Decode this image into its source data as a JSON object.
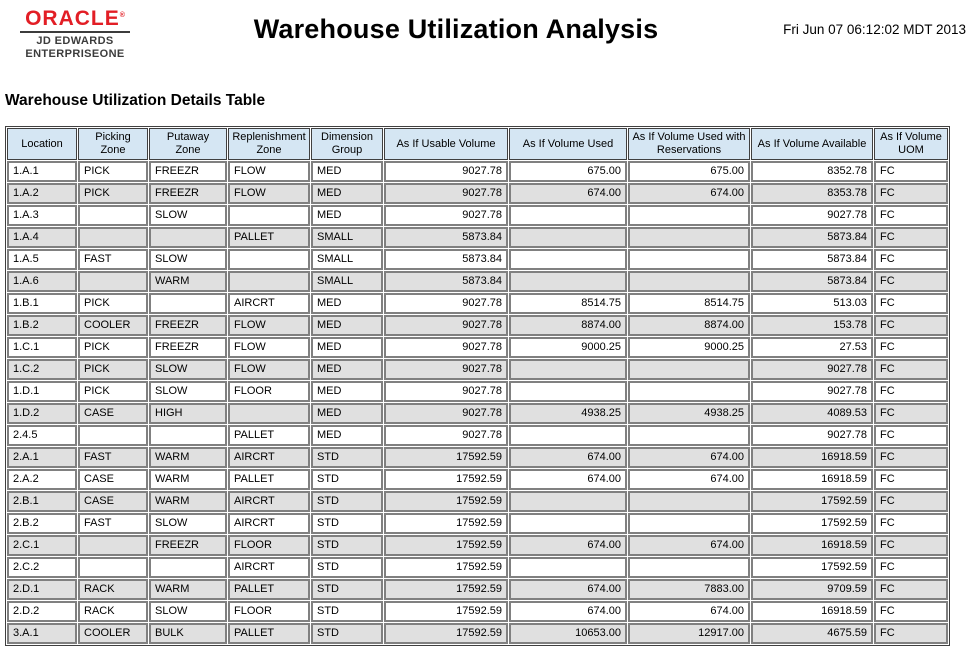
{
  "header": {
    "logo": {
      "brand": "ORACLE",
      "registered_mark": "®",
      "line1": "JD EDWARDS",
      "line2": "ENTERPRISEONE"
    },
    "title": "Warehouse Utilization Analysis",
    "timestamp": "Fri Jun 07 06:12:02 MDT 2013"
  },
  "section": {
    "heading": "Warehouse Utilization Details Table"
  },
  "table": {
    "columns": [
      {
        "label": "Location",
        "align": "left"
      },
      {
        "label": "Picking Zone",
        "align": "left"
      },
      {
        "label": "Putaway Zone",
        "align": "left"
      },
      {
        "label": "Replenishment Zone",
        "align": "left"
      },
      {
        "label": "Dimension Group",
        "align": "left"
      },
      {
        "label": "As If Usable Volume",
        "align": "right"
      },
      {
        "label": "As If Volume Used",
        "align": "right"
      },
      {
        "label": "As If Volume Used with Reservations",
        "align": "right"
      },
      {
        "label": "As If Volume Available",
        "align": "right"
      },
      {
        "label": "As If Volume UOM",
        "align": "left"
      }
    ],
    "rows": [
      [
        "1.A.1",
        "PICK",
        "FREEZR",
        "FLOW",
        "MED",
        "9027.78",
        "675.00",
        "675.00",
        "8352.78",
        "FC"
      ],
      [
        "1.A.2",
        "PICK",
        "FREEZR",
        "FLOW",
        "MED",
        "9027.78",
        "674.00",
        "674.00",
        "8353.78",
        "FC"
      ],
      [
        "1.A.3",
        "",
        "SLOW",
        "",
        "MED",
        "9027.78",
        "",
        "",
        "9027.78",
        "FC"
      ],
      [
        "1.A.4",
        "",
        "",
        "PALLET",
        "SMALL",
        "5873.84",
        "",
        "",
        "5873.84",
        "FC"
      ],
      [
        "1.A.5",
        "FAST",
        "SLOW",
        "",
        "SMALL",
        "5873.84",
        "",
        "",
        "5873.84",
        "FC"
      ],
      [
        "1.A.6",
        "",
        "WARM",
        "",
        "SMALL",
        "5873.84",
        "",
        "",
        "5873.84",
        "FC"
      ],
      [
        "1.B.1",
        "PICK",
        "",
        "AIRCRT",
        "MED",
        "9027.78",
        "8514.75",
        "8514.75",
        "513.03",
        "FC"
      ],
      [
        "1.B.2",
        "COOLER",
        "FREEZR",
        "FLOW",
        "MED",
        "9027.78",
        "8874.00",
        "8874.00",
        "153.78",
        "FC"
      ],
      [
        "1.C.1",
        "PICK",
        "FREEZR",
        "FLOW",
        "MED",
        "9027.78",
        "9000.25",
        "9000.25",
        "27.53",
        "FC"
      ],
      [
        "1.C.2",
        "PICK",
        "SLOW",
        "FLOW",
        "MED",
        "9027.78",
        "",
        "",
        "9027.78",
        "FC"
      ],
      [
        "1.D.1",
        "PICK",
        "SLOW",
        "FLOOR",
        "MED",
        "9027.78",
        "",
        "",
        "9027.78",
        "FC"
      ],
      [
        "1.D.2",
        "CASE",
        "HIGH",
        "",
        "MED",
        "9027.78",
        "4938.25",
        "4938.25",
        "4089.53",
        "FC"
      ],
      [
        "2.4.5",
        "",
        "",
        "PALLET",
        "MED",
        "9027.78",
        "",
        "",
        "9027.78",
        "FC"
      ],
      [
        "2.A.1",
        "FAST",
        "WARM",
        "AIRCRT",
        "STD",
        "17592.59",
        "674.00",
        "674.00",
        "16918.59",
        "FC"
      ],
      [
        "2.A.2",
        "CASE",
        "WARM",
        "PALLET",
        "STD",
        "17592.59",
        "674.00",
        "674.00",
        "16918.59",
        "FC"
      ],
      [
        "2.B.1",
        "CASE",
        "WARM",
        "AIRCRT",
        "STD",
        "17592.59",
        "",
        "",
        "17592.59",
        "FC"
      ],
      [
        "2.B.2",
        "FAST",
        "SLOW",
        "AIRCRT",
        "STD",
        "17592.59",
        "",
        "",
        "17592.59",
        "FC"
      ],
      [
        "2.C.1",
        "",
        "FREEZR",
        "FLOOR",
        "STD",
        "17592.59",
        "674.00",
        "674.00",
        "16918.59",
        "FC"
      ],
      [
        "2.C.2",
        "",
        "",
        "AIRCRT",
        "STD",
        "17592.59",
        "",
        "",
        "17592.59",
        "FC"
      ],
      [
        "2.D.1",
        "RACK",
        "WARM",
        "PALLET",
        "STD",
        "17592.59",
        "674.00",
        "7883.00",
        "9709.59",
        "FC"
      ],
      [
        "2.D.2",
        "RACK",
        "SLOW",
        "FLOOR",
        "STD",
        "17592.59",
        "674.00",
        "674.00",
        "16918.59",
        "FC"
      ],
      [
        "3.A.1",
        "COOLER",
        "BULK",
        "PALLET",
        "STD",
        "17592.59",
        "10653.00",
        "12917.00",
        "4675.59",
        "FC"
      ]
    ]
  },
  "colors": {
    "brand_red": "#E21E25",
    "header_cell_bg": "#D5E6F3",
    "row_alt_bg": "#E0E0E0",
    "cell_border": "#808080",
    "header_border": "#404040"
  }
}
